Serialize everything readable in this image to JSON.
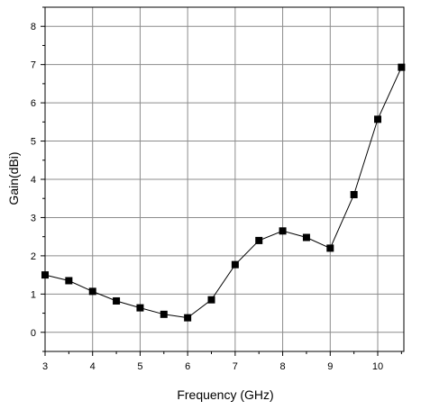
{
  "chart_data": {
    "type": "line",
    "title": "",
    "xlabel": "Frequency (GHz)",
    "ylabel": "Gain(dBi)",
    "xlim": [
      3,
      10.55
    ],
    "ylim": [
      -0.5,
      8.5
    ],
    "xticks": [
      3,
      4,
      5,
      6,
      7,
      8,
      9,
      10
    ],
    "yticks": [
      0,
      1,
      2,
      3,
      4,
      5,
      6,
      7,
      8
    ],
    "grid": true,
    "legend": "none",
    "series": [
      {
        "color": "#000000",
        "marker": "square",
        "x": [
          3,
          3.5,
          4,
          4.5,
          5,
          5.5,
          6,
          6.5,
          7,
          7.5,
          8,
          8.5,
          9,
          9.5,
          10,
          10.5
        ],
        "y": [
          1.5,
          1.35,
          1.07,
          0.82,
          0.64,
          0.47,
          0.38,
          0.85,
          1.77,
          2.4,
          2.65,
          2.48,
          2.2,
          3.6,
          5.57,
          6.93
        ]
      }
    ]
  }
}
